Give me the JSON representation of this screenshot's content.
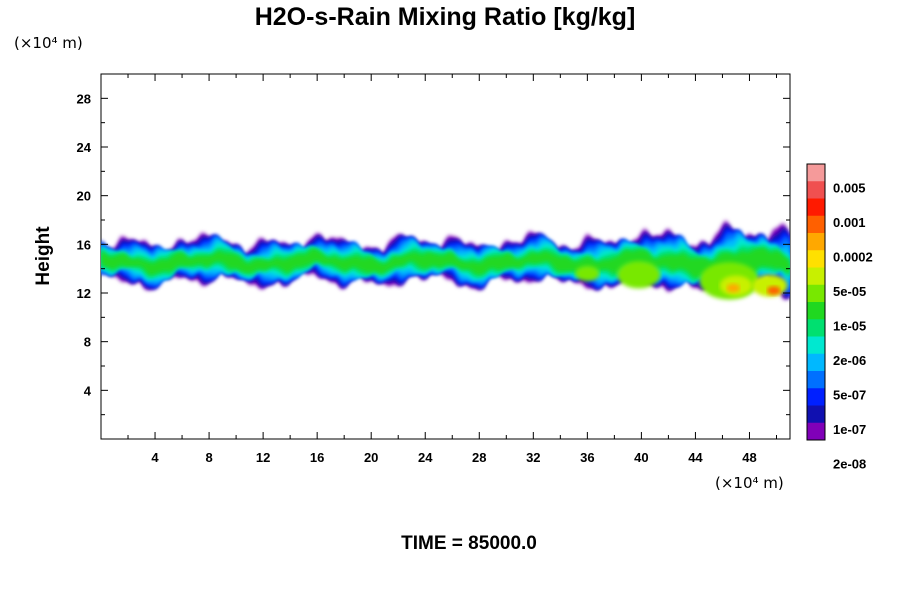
{
  "chart_data": {
    "type": "heatmap",
    "title": "H2O-s-Rain Mixing Ratio [kg/kg]",
    "ylabel": "Height",
    "y_unit_label": "(×10⁴ m)",
    "x_unit_label": "(×10⁴ m)",
    "xlim": [
      0,
      51
    ],
    "ylim": [
      0,
      30
    ],
    "xticks": [
      4,
      8,
      12,
      16,
      20,
      24,
      28,
      32,
      36,
      40,
      44,
      48
    ],
    "yticks": [
      4,
      8,
      12,
      16,
      20,
      24,
      28
    ],
    "footer": "TIME = 85000.0",
    "colorbar": {
      "colors": [
        "#f59a9a",
        "#f05050",
        "#ff1a00",
        "#ff6000",
        "#ffa800",
        "#ffe000",
        "#c8f000",
        "#78e800",
        "#20d820",
        "#00e070",
        "#00e8d0",
        "#00b8ff",
        "#0070ff",
        "#0020ff",
        "#1010b0",
        "#8000b8"
      ],
      "labels": [
        "0.005",
        "0.001",
        "0.0002",
        "5e-05",
        "1e-05",
        "2e-06",
        "5e-07",
        "1e-07",
        "2e-08"
      ]
    },
    "layer": {
      "bottom_height_approx": 12.5,
      "top_height_approx": 16.5,
      "x_extent": [
        0,
        51
      ]
    }
  }
}
